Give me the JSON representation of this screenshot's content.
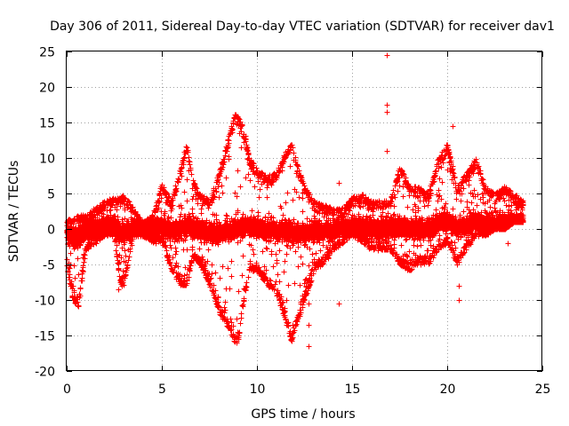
{
  "chart_data": {
    "type": "scatter",
    "title": "Day 306 of 2011, Sidereal Day-to-day VTEC variation (SDTVAR) for receiver dav1",
    "xlabel": "GPS time / hours",
    "ylabel": "SDTVAR / TECUs",
    "xlim": [
      0,
      25
    ],
    "ylim": [
      -20,
      25
    ],
    "xticks": [
      0,
      5,
      10,
      15,
      20,
      25
    ],
    "yticks": [
      -20,
      -15,
      -10,
      -5,
      0,
      5,
      10,
      15,
      20,
      25
    ],
    "x_tick_labels": [
      "0",
      "5",
      "10",
      "15",
      "20",
      "25"
    ],
    "y_tick_labels": [
      "-20",
      "-15",
      "-10",
      "-5",
      "0",
      "5",
      "10",
      "15",
      "20",
      "25"
    ],
    "grid": true,
    "marker": "+",
    "color": "#ff0000",
    "envelope": {
      "description": "approximate upper / lower bounds of the dense point cloud",
      "x": [
        0.0,
        0.3,
        0.6,
        1.0,
        1.5,
        2.0,
        2.5,
        2.8,
        3.0,
        3.5,
        4.0,
        4.5,
        5.0,
        5.5,
        6.0,
        6.3,
        6.6,
        7.0,
        7.5,
        8.0,
        8.5,
        8.8,
        9.0,
        9.3,
        9.6,
        10.0,
        10.5,
        11.0,
        11.5,
        11.8,
        12.0,
        12.5,
        13.0,
        13.5,
        14.0,
        14.5,
        15.0,
        15.5,
        16.0,
        16.5,
        17.0,
        17.5,
        18.0,
        18.5,
        19.0,
        19.5,
        20.0,
        20.5,
        21.0,
        21.5,
        22.0,
        22.5,
        23.0,
        23.5,
        24.0
      ],
      "upper": [
        1.5,
        1.5,
        2.0,
        2.0,
        3.0,
        4.0,
        4.5,
        4.5,
        5.0,
        3.0,
        1.0,
        2.0,
        6.5,
        4.0,
        9.0,
        12.0,
        7.0,
        5.0,
        4.0,
        8.0,
        13.0,
        16.5,
        16.0,
        14.0,
        10.0,
        8.5,
        7.5,
        8.0,
        11.0,
        12.0,
        10.0,
        6.0,
        4.0,
        3.5,
        3.0,
        3.0,
        4.5,
        5.0,
        4.0,
        4.0,
        4.0,
        9.0,
        6.0,
        6.0,
        5.0,
        10.0,
        12.0,
        6.0,
        8.0,
        10.0,
        6.0,
        5.0,
        6.0,
        5.0,
        4.0
      ],
      "lower": [
        -5.0,
        -10.0,
        -11.0,
        -3.0,
        -2.0,
        -1.0,
        -1.0,
        -8.0,
        -8.0,
        -1.0,
        -1.0,
        -2.0,
        -2.0,
        -6.0,
        -8.0,
        -8.0,
        -4.0,
        -5.0,
        -8.0,
        -12.0,
        -14.0,
        -16.0,
        -16.0,
        -10.0,
        -6.0,
        -6.0,
        -8.0,
        -9.0,
        -13.0,
        -16.0,
        -14.0,
        -10.0,
        -6.0,
        -5.0,
        -3.0,
        -2.0,
        -1.0,
        -2.0,
        -3.0,
        -3.0,
        -3.0,
        -5.0,
        -6.0,
        -5.0,
        -5.0,
        -3.0,
        -2.0,
        -5.0,
        -3.0,
        -1.0,
        -1.0,
        0.0,
        0.0,
        1.0,
        1.0
      ]
    },
    "outliers": [
      {
        "x": 16.8,
        "y": 24.5
      },
      {
        "x": 16.8,
        "y": 17.5
      },
      {
        "x": 16.8,
        "y": 16.5
      },
      {
        "x": 16.8,
        "y": 11.0
      },
      {
        "x": 20.3,
        "y": 14.5
      },
      {
        "x": 12.7,
        "y": -16.5
      },
      {
        "x": 12.7,
        "y": -13.5
      },
      {
        "x": 12.7,
        "y": -10.5
      },
      {
        "x": 14.3,
        "y": -10.5
      },
      {
        "x": 14.3,
        "y": 6.5
      },
      {
        "x": 20.6,
        "y": -10.0
      },
      {
        "x": 20.6,
        "y": -8.0
      },
      {
        "x": 20.5,
        "y": -5.0
      },
      {
        "x": 23.2,
        "y": -2.0
      },
      {
        "x": 2.7,
        "y": -8.5
      },
      {
        "x": 0.6,
        "y": -10.8
      }
    ]
  }
}
